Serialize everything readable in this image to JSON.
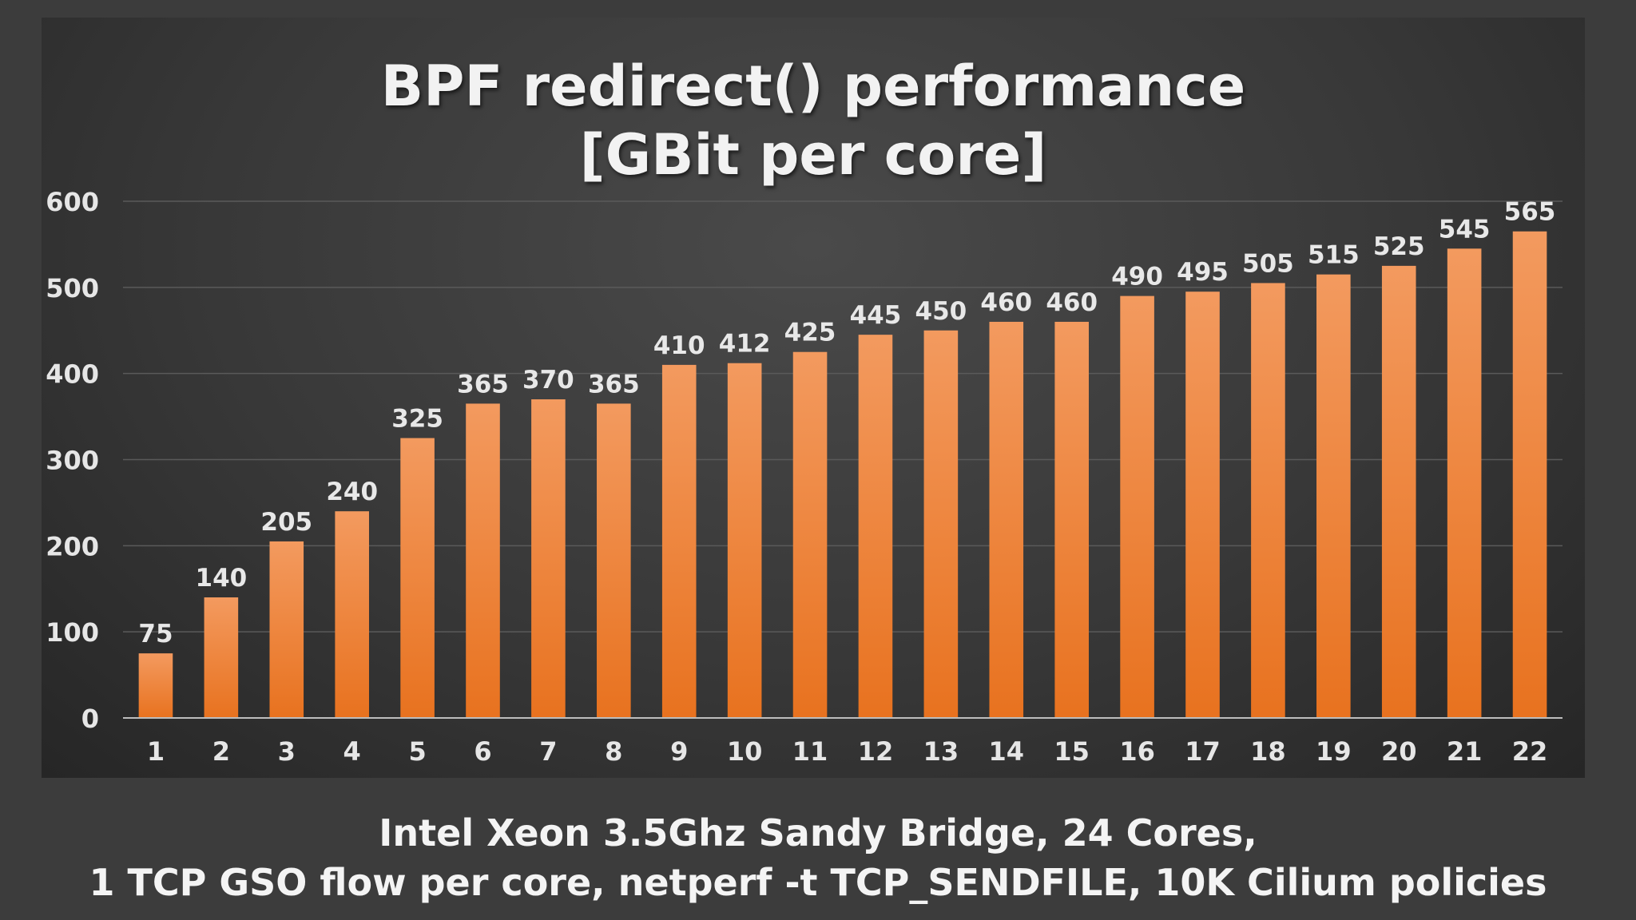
{
  "chart_data": {
    "type": "bar",
    "title_lines": [
      "BPF redirect() performance",
      "[GBit per core]"
    ],
    "categories": [
      "1",
      "2",
      "3",
      "4",
      "5",
      "6",
      "7",
      "8",
      "9",
      "10",
      "11",
      "12",
      "13",
      "14",
      "15",
      "16",
      "17",
      "18",
      "19",
      "20",
      "21",
      "22"
    ],
    "values": [
      75,
      140,
      205,
      240,
      325,
      365,
      370,
      365,
      410,
      412,
      425,
      445,
      450,
      460,
      460,
      490,
      495,
      505,
      515,
      525,
      545,
      565
    ],
    "ylim": [
      0,
      600
    ],
    "yticks": [
      "0",
      "100",
      "200",
      "300",
      "400",
      "500",
      "600"
    ],
    "xlabel": "",
    "ylabel": "",
    "grid": true,
    "legend": "none",
    "bar_color": "#ed7d31"
  },
  "footnote": {
    "line1": "Intel Xeon 3.5Ghz Sandy Bridge, 24 Cores,",
    "line2": "1 TCP GSO flow per core, netperf -t TCP_SENDFILE, 10K Cilium policies"
  }
}
